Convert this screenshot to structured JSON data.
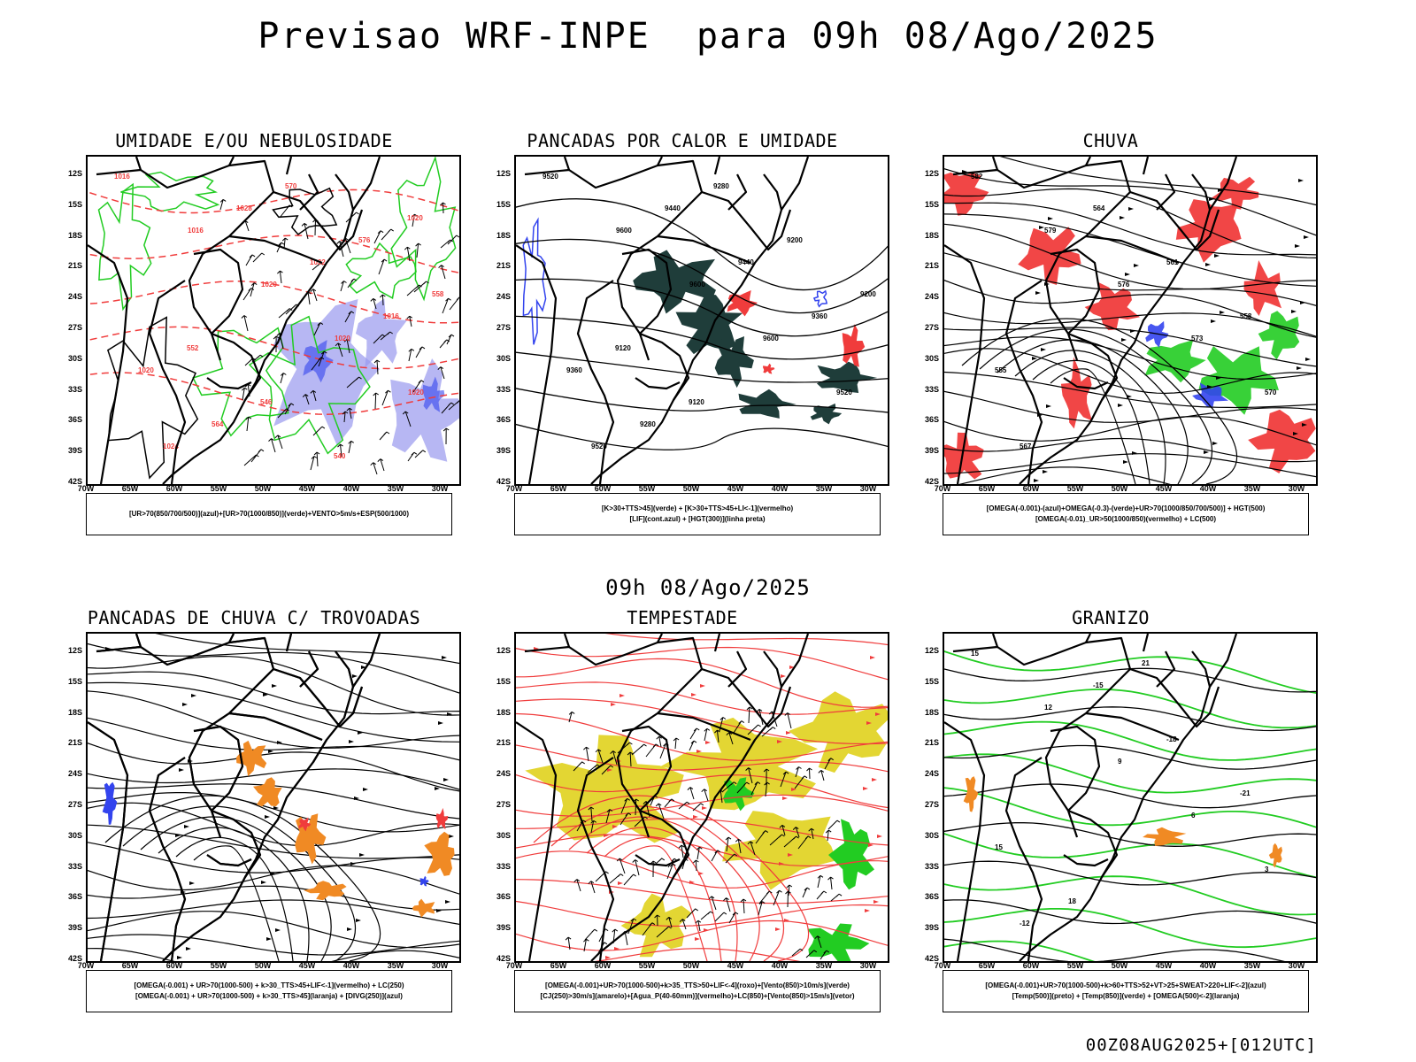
{
  "header": {
    "title": "Previsao WRF-INPE  para 09h 08/Ago/2025"
  },
  "mid_title": "09h 08/Ago/2025",
  "footer": "00Z08AUG2025+[012UTC]",
  "lat_labels": [
    "12S",
    "15S",
    "18S",
    "21S",
    "24S",
    "27S",
    "30S",
    "33S",
    "36S",
    "39S",
    "42S"
  ],
  "lon_labels": [
    "70W",
    "65W",
    "60W",
    "55W",
    "50W",
    "45W",
    "40W",
    "35W",
    "30W"
  ],
  "panels": [
    {
      "title": "UMIDADE E/OU NEBULOSIDADE",
      "legend": [
        "[UR>70(850/700/500)](azul)+[UR>70(1000/850)](verde)+VENTO>5m/s+ESP(500/1000)"
      ],
      "contour_labels": [
        "1016",
        "1016",
        "1020",
        "1020",
        "1020",
        "1024",
        "1028",
        "1032",
        "1016",
        "1020",
        "564",
        "570",
        "576",
        "558",
        "552",
        "546",
        "540",
        "1020"
      ],
      "layers": [
        "blue-fill",
        "green-contour",
        "red-dashed",
        "black-contour",
        "wind-arrows"
      ]
    },
    {
      "title": "PANCADAS POR CALOR E UMIDADE",
      "legend": [
        "[K>30+TTS>45](verde) + [K>30+TTS>45+LI<-1](vermelho)",
        "[LIF](cont.azul) + [HGT(300)](linha preta)"
      ],
      "contour_labels": [
        "9520",
        "9600",
        "9600",
        "9600",
        "9520",
        "9520",
        "9440",
        "9440",
        "9360",
        "9360",
        "9280",
        "9280",
        "9200",
        "9200",
        "9120",
        "9120"
      ],
      "layers": [
        "dark-fill",
        "red-fill",
        "blue-contour",
        "black-contour"
      ]
    },
    {
      "title": "CHUVA",
      "legend": [
        "[OMEGA(-0.001)-(azul)+OMEGA(-0.3)-(verde)+UR>70(1000/850/700/500)] + HGT(500)",
        "[OMEGA(-0.01)_UR>50(1000/850)(vermelho) + LC(500)"
      ],
      "contour_labels": [
        "582",
        "579",
        "576",
        "573",
        "570",
        "567",
        "564",
        "561",
        "558",
        "555"
      ],
      "layers": [
        "red-fill",
        "blue-fill",
        "green-fill",
        "streamlines"
      ]
    },
    {
      "title": "PANCADAS DE CHUVA C/ TROVOADAS",
      "legend": [
        "[OMEGA(-0.001) + UR>70(1000-500) + k>30_TTS>45+LIF<-1](vermelho) + LC(250)",
        "[OMEGA(-0.001) + UR>70(1000-500) + k>30_TTS>45](laranja) + [DIVG(250)](azul)"
      ],
      "layers": [
        "orange-fill",
        "red-fill",
        "blue-fill",
        "streamlines"
      ]
    },
    {
      "title": "TEMPESTADE",
      "legend": [
        "[OMEGA(-0.001)+UR>70(1000-500)+k>35_TTS>50+LIF<-4](roxo)+[Vento(850)>10m/s](verde)",
        "[CJ(250)>30m/s](amarelo)+[Agua_P(40-60mm)](vermelho)+LC(850)+[Vento(850)>15m/s](vetor)"
      ],
      "layers": [
        "yellow-fill",
        "green-fill",
        "red-streamlines",
        "wind-vectors"
      ]
    },
    {
      "title": "GRANIZO",
      "legend": [
        "[OMEGA(-0.001)+UR>70(1000-500)+k>60+TTS>52+VT>25+SWEAT>220+LIF<-2](azul)",
        "[Temp(500)](preto) + [Temp(850)](verde) + [OMEGA(500)<-2](laranja)"
      ],
      "contour_labels": [
        "15",
        "12",
        "9",
        "6",
        "3",
        "-12",
        "-15",
        "-18",
        "-21",
        "15",
        "18",
        "21"
      ],
      "layers": [
        "green-contour",
        "black-contour",
        "orange-fill"
      ]
    }
  ],
  "colors": {
    "red": "#f03c3c",
    "green": "#22cc22",
    "blue": "#3344ee",
    "lavender": "#9999ee",
    "dark": "#1f3d3a",
    "orange": "#f08a24",
    "yellow": "#e3d633"
  }
}
